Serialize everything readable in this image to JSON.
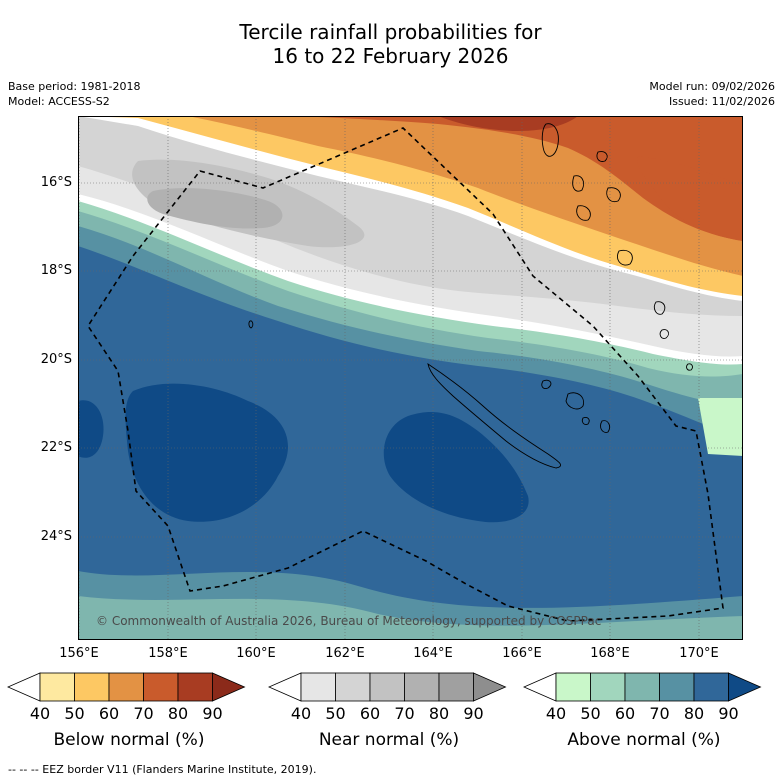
{
  "title": {
    "line1": "Tercile rainfall probabilities for",
    "line2": "16 to 22 February 2026"
  },
  "meta": {
    "base_period": "Base period: 1981-2018",
    "model": "Model: ACCESS-S2",
    "model_run": "Model run: 09/02/2026",
    "issued": "Issued: 11/02/2026"
  },
  "map": {
    "lon_labels": [
      "156°E",
      "158°E",
      "160°E",
      "162°E",
      "164°E",
      "166°E",
      "168°E",
      "170°E"
    ],
    "lat_labels": [
      "16°S",
      "18°S",
      "20°S",
      "22°S",
      "24°S"
    ],
    "credit": "© Commonwealth of Australia 2026, Bureau of Meteorology, supported by COSPPac"
  },
  "legends": [
    {
      "title": "Below normal (%)",
      "ticks": [
        "40",
        "50",
        "60",
        "70",
        "80",
        "90"
      ],
      "colors": [
        "#ffffff",
        "#fee9a0",
        "#fdc863",
        "#e39244",
        "#c95b2c",
        "#a83c22",
        "#8b2a1a"
      ]
    },
    {
      "title": "Near normal (%)",
      "ticks": [
        "40",
        "50",
        "60",
        "70",
        "80",
        "90"
      ],
      "colors": [
        "#ffffff",
        "#e6e6e6",
        "#d4d4d4",
        "#c2c2c2",
        "#b1b1b1",
        "#a0a0a0",
        "#8e8e8e"
      ]
    },
    {
      "title": "Above normal (%)",
      "ticks": [
        "40",
        "50",
        "60",
        "70",
        "80",
        "90"
      ],
      "colors": [
        "#ffffff",
        "#c9f7c9",
        "#a1d6bd",
        "#7fb6ae",
        "#5791a3",
        "#306799",
        "#0f4a86"
      ]
    }
  ],
  "footer": "--  --  -- EEZ border V11 (Flanders Marine Institute, 2019)."
}
